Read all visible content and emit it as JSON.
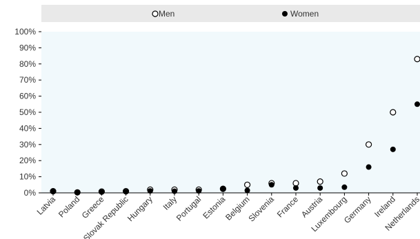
{
  "chart_data": {
    "type": "scatter",
    "title": "",
    "xlabel": "",
    "ylabel": "",
    "categories": [
      "Latvia",
      "Poland",
      "Greece",
      "Slovak Republic",
      "Hungary",
      "Italy",
      "Portugal",
      "Estonia",
      "Belgium",
      "Slovenia",
      "France",
      "Austria",
      "Luxembourg",
      "Germany",
      "Ireland",
      "Netherlands"
    ],
    "ylim": [
      0,
      100
    ],
    "y_ticks": [
      0,
      10,
      20,
      30,
      40,
      50,
      60,
      70,
      80,
      90,
      100
    ],
    "y_tick_labels": [
      "0%",
      "10%",
      "20%",
      "30%",
      "40%",
      "50%",
      "60%",
      "70%",
      "80%",
      "90%",
      "100%"
    ],
    "series": [
      {
        "name": "Men",
        "marker": "hollow-circle",
        "values": [
          1,
          0.3,
          0.8,
          1,
          2,
          2,
          2,
          2.5,
          5,
          6,
          6,
          7,
          12,
          30,
          50,
          83
        ]
      },
      {
        "name": "Women",
        "marker": "filled-circle",
        "values": [
          1,
          0.3,
          0.5,
          0.7,
          1.2,
          1,
          1.2,
          2.5,
          1.5,
          5,
          3,
          3,
          3.5,
          16,
          27,
          55
        ]
      }
    ],
    "legend_position": "top",
    "grid": false,
    "colors": {
      "plot_background": "#f1f9fc",
      "legend_background": "#e9e9e9",
      "axis": "#000000",
      "marker": "#000000"
    }
  }
}
